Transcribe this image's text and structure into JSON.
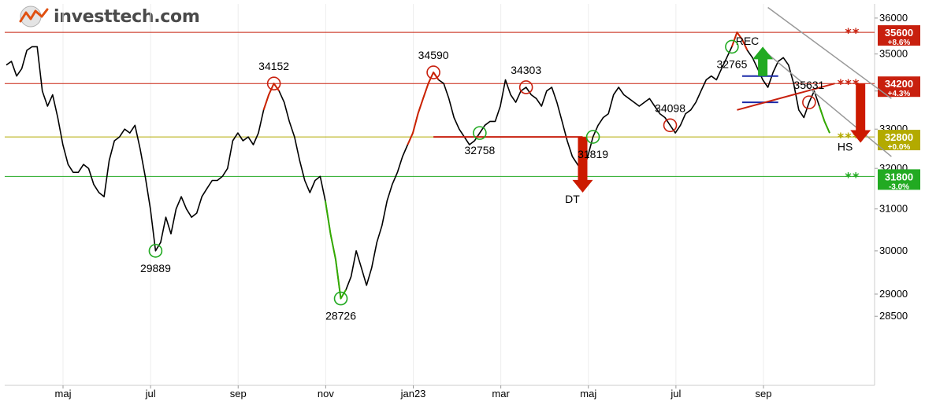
{
  "logo": {
    "name": "investtech.com"
  },
  "colors": {
    "background": "#ffffff",
    "price_line": "#000000",
    "up_segment": "#33aa00",
    "down_segment": "#cc2200",
    "resistance": "#c8200e",
    "support": "#22aa22",
    "neutral": "#b3aa00",
    "channel": "#999999",
    "rectangle": "#1a2aa8",
    "axis_text": "#000000"
  },
  "chart_data": {
    "type": "line",
    "title": "",
    "xlabel": "",
    "ylabel": "",
    "scale": "log",
    "ylim": [
      27000,
      36400
    ],
    "x_ticks": [
      "maj",
      "jul",
      "sep",
      "nov",
      "jan23",
      "mar",
      "maj",
      "jul",
      "sep"
    ],
    "y_ticks": [
      36000,
      35000,
      34000,
      33000,
      32000,
      31000,
      30000,
      29000,
      28500
    ],
    "grid": "vertical",
    "series": [
      {
        "values": [
          34700,
          34800,
          34400,
          34600,
          35100,
          35200,
          35200,
          34000,
          33600,
          33900,
          33300,
          32600,
          32100,
          31900,
          31900,
          32100,
          32000,
          31600,
          31400,
          31300,
          32200,
          32700,
          32800,
          33000,
          32900,
          33100,
          32500,
          31800,
          31000,
          30000,
          30200,
          30800,
          30400,
          31000,
          31300,
          31000,
          30800,
          30900,
          31300,
          31500,
          31700,
          31700,
          31800,
          32000,
          32700,
          32900,
          32700,
          32800,
          32600,
          32900,
          33500,
          33900,
          34200,
          34000,
          33700,
          33200,
          32800,
          32200,
          31700,
          31400,
          31700,
          31800,
          31200,
          30400,
          29800,
          28900,
          29100,
          29400,
          30000,
          29600,
          29200,
          29600,
          30200,
          30600,
          31200,
          31600,
          31900,
          32300,
          32600,
          32900,
          33400,
          33800,
          34200,
          34500,
          34300,
          34200,
          33800,
          33300,
          33000,
          32800,
          32600,
          32700,
          32900,
          33100,
          33200,
          33200,
          33600,
          34300,
          33900,
          33700,
          34000,
          34100,
          33900,
          33800,
          33600,
          34000,
          34100,
          33700,
          33200,
          32700,
          32300,
          32100,
          31900,
          32300,
          32800,
          33100,
          33300,
          33400,
          33900,
          34100,
          33900,
          33800,
          33700,
          33600,
          33700,
          33800,
          33600,
          33400,
          33300,
          33100,
          32900,
          33100,
          33400,
          33500,
          33700,
          34000,
          34300,
          34400,
          34300,
          34600,
          34900,
          35200,
          35600,
          35400,
          35100,
          34900,
          34600,
          34300,
          34100,
          34500,
          34800,
          34900,
          34700,
          34200,
          33500,
          33300,
          33700,
          34000,
          33600,
          33200,
          32900
        ],
        "color_changes": [
          {
            "from_index": 50,
            "to_index": 53,
            "color": "down"
          },
          {
            "from_index": 62,
            "to_index": 66,
            "color": "up"
          },
          {
            "from_index": 78,
            "to_index": 84,
            "color": "down"
          },
          {
            "from_index": 141,
            "to_index": 144,
            "color": "down"
          },
          {
            "from_index": 158,
            "to_index": 160,
            "color": "up"
          }
        ]
      }
    ],
    "horizontal_levels": [
      {
        "value": 35600,
        "kind": "resistance",
        "stars": "**",
        "label": "35600",
        "pct": "+8.6%"
      },
      {
        "value": 34200,
        "kind": "resistance",
        "stars": "***",
        "label": "34200",
        "pct": "+4.3%"
      },
      {
        "value": 32800,
        "kind": "neutral",
        "stars": "***",
        "label": "32800",
        "pct": "+0.0%"
      },
      {
        "value": 31800,
        "kind": "support",
        "stars": "**",
        "label": "31800",
        "pct": "-3.0%"
      }
    ],
    "extremes": [
      {
        "index": 29,
        "value": 29889,
        "kind": "low",
        "label": "29889"
      },
      {
        "index": 52,
        "value": 34152,
        "kind": "high",
        "label": "34152"
      },
      {
        "index": 65,
        "value": 28726,
        "kind": "low",
        "label": "28726"
      },
      {
        "index": 83,
        "value": 34590,
        "kind": "high",
        "label": "34590"
      },
      {
        "index": 92,
        "value": 32758,
        "kind": "low",
        "label": "32758"
      },
      {
        "index": 101,
        "value": 34303,
        "kind": "high",
        "label": "34303"
      },
      {
        "index": 114,
        "value": 31819,
        "kind": "low",
        "label": "31819"
      },
      {
        "index": 129,
        "value": 34098,
        "kind": "high",
        "label": "34098"
      },
      {
        "index": 141,
        "value": 32765,
        "kind": "low",
        "label": "32765"
      },
      {
        "index": 156,
        "value": 35631,
        "kind": "high",
        "label": "35631"
      }
    ],
    "patterns": [
      {
        "label": "REC",
        "direction": "up"
      },
      {
        "label": "DT",
        "direction": "down"
      },
      {
        "label": "HS",
        "direction": "down"
      }
    ]
  }
}
